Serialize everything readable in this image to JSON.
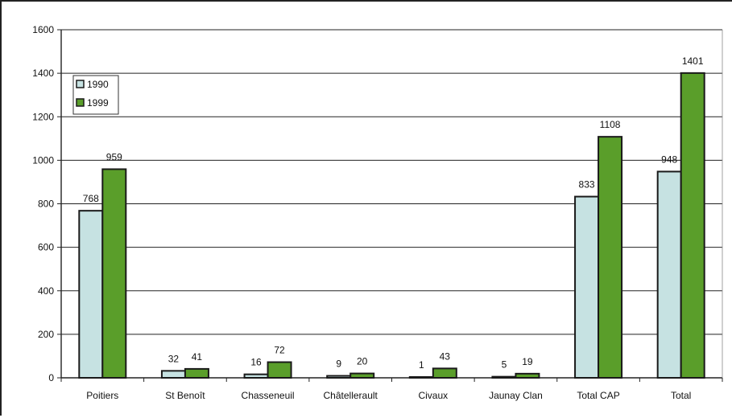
{
  "chart_data": {
    "type": "bar",
    "title": "",
    "xlabel": "",
    "ylabel": "",
    "ylim": [
      0,
      1600
    ],
    "yticks": [
      0,
      200,
      400,
      600,
      800,
      1000,
      1200,
      1400,
      1600
    ],
    "grid": true,
    "legend_position": "top-left",
    "categories": [
      "Poitiers",
      "St Benoît",
      "Chasseneuil",
      "Châtellerault",
      "Civaux",
      "Jaunay Clan",
      "Total CAP",
      "Total"
    ],
    "series": [
      {
        "name": "1990",
        "values": [
          768,
          32,
          16,
          9,
          1,
          5,
          833,
          948
        ],
        "color": "#c6e2e2"
      },
      {
        "name": "1999",
        "values": [
          959,
          41,
          72,
          20,
          43,
          19,
          1108,
          1401
        ],
        "color": "#5a9e2a"
      }
    ]
  }
}
